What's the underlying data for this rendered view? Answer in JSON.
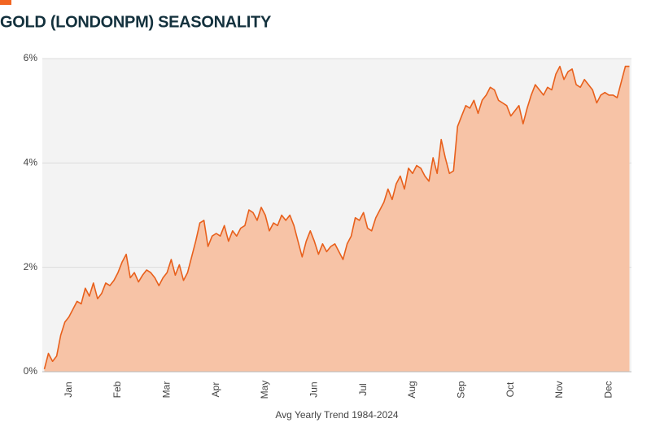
{
  "chart_data": {
    "type": "area",
    "title": "GOLD (LONDONPM) SEASONALITY",
    "x_label": "Avg Yearly Trend 1984-2024",
    "line_color": "#e8601c",
    "fill_color": "#f7c3a6",
    "grid": true,
    "ylim": [
      0,
      6
    ],
    "yticks": [
      {
        "value": 0,
        "label": "0%"
      },
      {
        "value": 2,
        "label": "2%"
      },
      {
        "value": 4,
        "label": "4%"
      },
      {
        "value": 6,
        "label": "6%"
      }
    ],
    "categories": [
      null,
      null,
      null,
      null,
      null,
      null,
      "Jan",
      null,
      null,
      null,
      null,
      null,
      null,
      null,
      null,
      null,
      null,
      null,
      "Feb",
      null,
      null,
      null,
      null,
      null,
      null,
      null,
      null,
      null,
      null,
      null,
      "Mar",
      null,
      null,
      null,
      null,
      null,
      null,
      null,
      null,
      null,
      null,
      null,
      "Apr",
      null,
      null,
      null,
      null,
      null,
      null,
      null,
      null,
      null,
      null,
      null,
      "May",
      null,
      null,
      null,
      null,
      null,
      null,
      null,
      null,
      null,
      null,
      null,
      "Jun",
      null,
      null,
      null,
      null,
      null,
      null,
      null,
      null,
      null,
      null,
      null,
      "Jul",
      null,
      null,
      null,
      null,
      null,
      null,
      null,
      null,
      null,
      null,
      null,
      "Aug",
      null,
      null,
      null,
      null,
      null,
      null,
      null,
      null,
      null,
      null,
      null,
      "Sep",
      null,
      null,
      null,
      null,
      null,
      null,
      null,
      null,
      null,
      null,
      null,
      "Oct",
      null,
      null,
      null,
      null,
      null,
      null,
      null,
      null,
      null,
      null,
      null,
      "Nov",
      null,
      null,
      null,
      null,
      null,
      null,
      null,
      null,
      null,
      null,
      null,
      "Dec",
      null,
      null,
      null,
      null,
      null
    ],
    "values": [
      0.05,
      0.35,
      0.2,
      0.3,
      0.7,
      0.95,
      1.05,
      1.2,
      1.35,
      1.3,
      1.6,
      1.45,
      1.7,
      1.4,
      1.5,
      1.7,
      1.65,
      1.75,
      1.9,
      2.1,
      2.25,
      1.8,
      1.9,
      1.72,
      1.85,
      1.95,
      1.9,
      1.8,
      1.65,
      1.8,
      1.9,
      2.15,
      1.85,
      2.05,
      1.75,
      1.9,
      2.2,
      2.5,
      2.85,
      2.9,
      2.4,
      2.6,
      2.65,
      2.6,
      2.8,
      2.5,
      2.7,
      2.6,
      2.75,
      2.8,
      3.1,
      3.05,
      2.9,
      3.15,
      3.0,
      2.7,
      2.85,
      2.8,
      3.0,
      2.9,
      3.0,
      2.8,
      2.5,
      2.2,
      2.5,
      2.7,
      2.5,
      2.25,
      2.45,
      2.3,
      2.4,
      2.45,
      2.3,
      2.15,
      2.45,
      2.6,
      2.95,
      2.9,
      3.05,
      2.75,
      2.7,
      2.95,
      3.1,
      3.25,
      3.5,
      3.3,
      3.6,
      3.75,
      3.5,
      3.9,
      3.8,
      3.95,
      3.9,
      3.75,
      3.65,
      4.1,
      3.8,
      4.45,
      4.1,
      3.8,
      3.85,
      4.7,
      4.9,
      5.1,
      5.05,
      5.2,
      4.95,
      5.2,
      5.3,
      5.45,
      5.4,
      5.2,
      5.15,
      5.1,
      4.9,
      5.0,
      5.1,
      4.75,
      5.05,
      5.3,
      5.5,
      5.4,
      5.3,
      5.45,
      5.4,
      5.7,
      5.85,
      5.6,
      5.75,
      5.8,
      5.5,
      5.45,
      5.6,
      5.5,
      5.4,
      5.15,
      5.3,
      5.35,
      5.3,
      5.3,
      5.25,
      5.55,
      5.85,
      5.85
    ]
  }
}
